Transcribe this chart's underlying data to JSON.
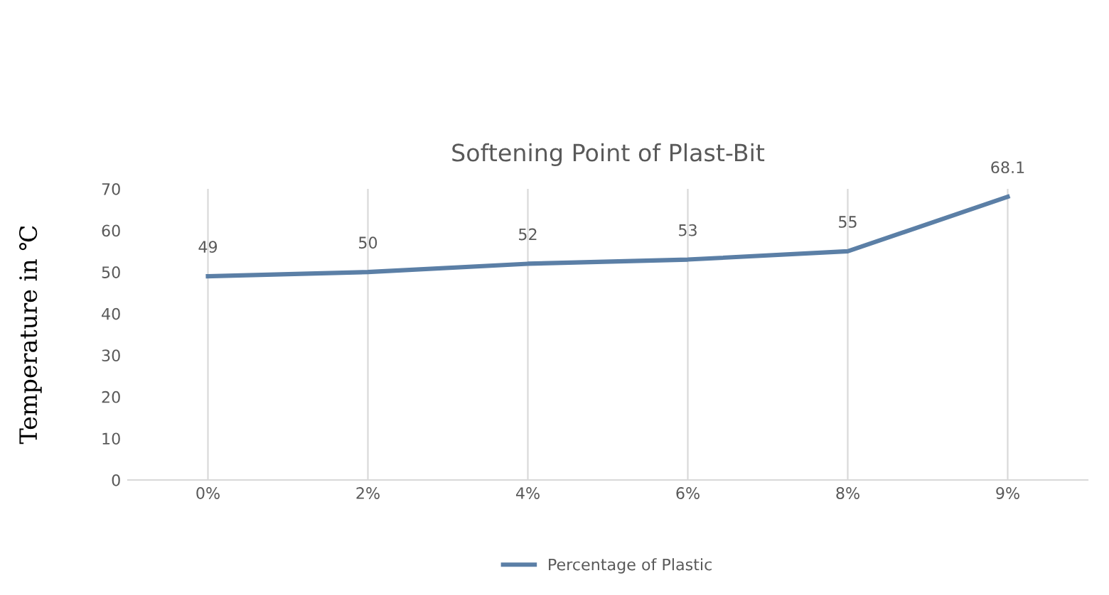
{
  "chart_data": {
    "type": "line",
    "title": "Softening Point of Plast-Bit",
    "ylabel": "Temperature in ℃",
    "categories": [
      "0%",
      "2%",
      "4%",
      "6%",
      "8%",
      "9%"
    ],
    "series": [
      {
        "name": "Percentage of Plastic",
        "color": "#5b7fa6",
        "values": [
          49,
          50,
          52,
          53,
          55,
          68.1
        ]
      }
    ],
    "ylim": [
      0,
      70
    ],
    "yticks": [
      0,
      10,
      20,
      30,
      40,
      50,
      60,
      70
    ],
    "grid": "x",
    "legend": "bottom",
    "data_labels": true,
    "marker": "none",
    "line_style": "solid"
  }
}
